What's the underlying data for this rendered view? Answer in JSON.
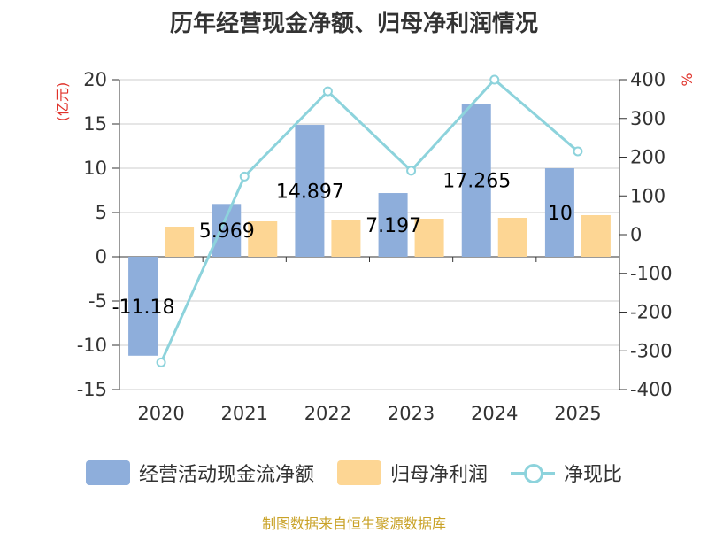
{
  "chart_data": {
    "type": "bar",
    "title": "历年经营现金净额、归母净利润情况",
    "categories": [
      "2020",
      "2021",
      "2022",
      "2023",
      "2024",
      "2025"
    ],
    "series": [
      {
        "name": "经营活动现金流净额",
        "kind": "bar",
        "axis": "left",
        "color": "#8eaedb",
        "values": [
          -11.18,
          5.969,
          14.897,
          7.197,
          17.265,
          10
        ],
        "labels": [
          "-11.18",
          "5.969",
          "14.897",
          "7.197",
          "17.265",
          "10"
        ]
      },
      {
        "name": "归母净利润",
        "kind": "bar",
        "axis": "left",
        "color": "#fdd694",
        "values": [
          3.4,
          4.0,
          4.1,
          4.3,
          4.4,
          4.7
        ]
      },
      {
        "name": "净现比",
        "kind": "line",
        "axis": "right",
        "color": "#8dd3dc",
        "values": [
          -330,
          150,
          370,
          165,
          400,
          215
        ]
      }
    ],
    "left_axis": {
      "unit": "(亿元)",
      "ylim": [
        -15,
        20
      ],
      "ticks": [
        "20",
        "15",
        "10",
        "5",
        "0",
        "-5",
        "-10",
        "-15"
      ]
    },
    "right_axis": {
      "unit": "%",
      "ylim": [
        -400,
        400
      ],
      "ticks": [
        "400",
        "300",
        "200",
        "100",
        "0",
        "-100",
        "-200",
        "-300",
        "-400"
      ]
    },
    "legend": [
      "经营活动现金流净额",
      "归母净利润",
      "净现比"
    ]
  },
  "source": "制图数据来自恒生聚源数据库"
}
